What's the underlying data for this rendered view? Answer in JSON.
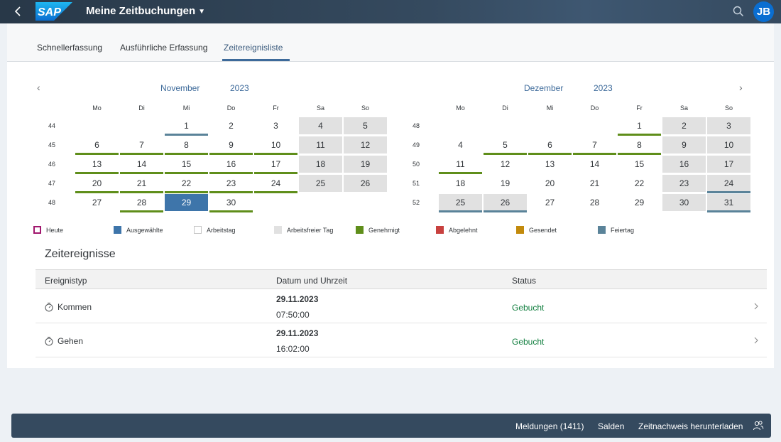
{
  "shell": {
    "logo_text": "SAP",
    "title": "Meine Zeitbuchungen",
    "title_caret": "▼",
    "avatar_initials": "JB",
    "back_icon": "chevron-left-icon",
    "search_icon": "search-icon"
  },
  "tabs": [
    {
      "label": "Schnellerfassung",
      "active": false
    },
    {
      "label": "Ausführliche Erfassung",
      "active": false
    },
    {
      "label": "Zeitereignisliste",
      "active": true
    }
  ],
  "calendar": {
    "prev_label": "‹",
    "next_label": "›",
    "weekdays": [
      "Mo",
      "Di",
      "Mi",
      "Do",
      "Fr",
      "Sa",
      "So"
    ],
    "months": [
      {
        "month": "November",
        "year": "2023",
        "weeks": [
          {
            "num": "44",
            "days": [
              null,
              null,
              {
                "d": "1",
                "s": "holiday"
              },
              {
                "d": "2",
                "s": ""
              },
              {
                "d": "3",
                "s": ""
              },
              {
                "d": "4",
                "s": "nonwork"
              },
              {
                "d": "5",
                "s": "nonwork"
              }
            ]
          },
          {
            "num": "45",
            "days": [
              {
                "d": "6",
                "s": "approved"
              },
              {
                "d": "7",
                "s": "approved"
              },
              {
                "d": "8",
                "s": "approved"
              },
              {
                "d": "9",
                "s": "approved"
              },
              {
                "d": "10",
                "s": "approved"
              },
              {
                "d": "11",
                "s": "nonwork"
              },
              {
                "d": "12",
                "s": "nonwork"
              }
            ]
          },
          {
            "num": "46",
            "days": [
              {
                "d": "13",
                "s": "approved"
              },
              {
                "d": "14",
                "s": "approved"
              },
              {
                "d": "15",
                "s": "approved"
              },
              {
                "d": "16",
                "s": "approved"
              },
              {
                "d": "17",
                "s": "approved"
              },
              {
                "d": "18",
                "s": "nonwork"
              },
              {
                "d": "19",
                "s": "nonwork"
              }
            ]
          },
          {
            "num": "47",
            "days": [
              {
                "d": "20",
                "s": "approved"
              },
              {
                "d": "21",
                "s": "approved"
              },
              {
                "d": "22",
                "s": "approved"
              },
              {
                "d": "23",
                "s": "approved"
              },
              {
                "d": "24",
                "s": "approved"
              },
              {
                "d": "25",
                "s": "nonwork"
              },
              {
                "d": "26",
                "s": "nonwork"
              }
            ]
          },
          {
            "num": "48",
            "days": [
              {
                "d": "27",
                "s": ""
              },
              {
                "d": "28",
                "s": "approved"
              },
              {
                "d": "29",
                "s": "selected"
              },
              {
                "d": "30",
                "s": "approved"
              },
              null,
              null,
              null
            ]
          }
        ]
      },
      {
        "month": "Dezember",
        "year": "2023",
        "weeks": [
          {
            "num": "48",
            "days": [
              null,
              null,
              null,
              null,
              {
                "d": "1",
                "s": "approved"
              },
              {
                "d": "2",
                "s": "nonwork"
              },
              {
                "d": "3",
                "s": "nonwork"
              }
            ]
          },
          {
            "num": "49",
            "days": [
              {
                "d": "4",
                "s": ""
              },
              {
                "d": "5",
                "s": "approved"
              },
              {
                "d": "6",
                "s": "approved"
              },
              {
                "d": "7",
                "s": "approved"
              },
              {
                "d": "8",
                "s": "approved"
              },
              {
                "d": "9",
                "s": "nonwork"
              },
              {
                "d": "10",
                "s": "nonwork"
              }
            ]
          },
          {
            "num": "50",
            "days": [
              {
                "d": "11",
                "s": "approved"
              },
              {
                "d": "12",
                "s": ""
              },
              {
                "d": "13",
                "s": ""
              },
              {
                "d": "14",
                "s": ""
              },
              {
                "d": "15",
                "s": ""
              },
              {
                "d": "16",
                "s": "nonwork"
              },
              {
                "d": "17",
                "s": "nonwork"
              }
            ]
          },
          {
            "num": "51",
            "days": [
              {
                "d": "18",
                "s": ""
              },
              {
                "d": "19",
                "s": ""
              },
              {
                "d": "20",
                "s": ""
              },
              {
                "d": "21",
                "s": ""
              },
              {
                "d": "22",
                "s": ""
              },
              {
                "d": "23",
                "s": "nonwork"
              },
              {
                "d": "24",
                "s": "nonwork holiday"
              }
            ]
          },
          {
            "num": "52",
            "days": [
              {
                "d": "25",
                "s": "nonwork holiday"
              },
              {
                "d": "26",
                "s": "nonwork holiday"
              },
              {
                "d": "27",
                "s": ""
              },
              {
                "d": "28",
                "s": ""
              },
              {
                "d": "29",
                "s": ""
              },
              {
                "d": "30",
                "s": "nonwork"
              },
              {
                "d": "31",
                "s": "nonwork holiday"
              }
            ]
          }
        ]
      }
    ]
  },
  "legend": [
    {
      "label": "Heute",
      "color": "#a1176e",
      "style": "outline"
    },
    {
      "label": "Ausgewählte",
      "color": "#3e75aa",
      "style": "fill"
    },
    {
      "label": "Arbeitstag",
      "color": "#ffffff",
      "style": "fill"
    },
    {
      "label": "Arbeitsfreier Tag",
      "color": "#e1e1e1",
      "style": "fill"
    },
    {
      "label": "Genehmigt",
      "color": "#5f8e1a",
      "style": "fill"
    },
    {
      "label": "Abgelehnt",
      "color": "#c8413f",
      "style": "fill"
    },
    {
      "label": "Gesendet",
      "color": "#c28a0c",
      "style": "fill"
    },
    {
      "label": "Feiertag",
      "color": "#5a8399",
      "style": "fill"
    }
  ],
  "events": {
    "title": "Zeitereignisse",
    "columns": [
      "Ereignistyp",
      "Datum und Uhrzeit",
      "Status"
    ],
    "rows": [
      {
        "type": "Kommen",
        "date": "29.11.2023",
        "time": "07:50:00",
        "status": "Gebucht",
        "icon": "stopwatch-icon"
      },
      {
        "type": "Gehen",
        "date": "29.11.2023",
        "time": "16:02:00",
        "status": "Gebucht",
        "icon": "stopwatch-icon"
      }
    ]
  },
  "footer": {
    "messages": "Meldungen (1411)",
    "balances": "Salden",
    "download": "Zeitnachweis herunterladen",
    "people_icon": "people-icon"
  }
}
